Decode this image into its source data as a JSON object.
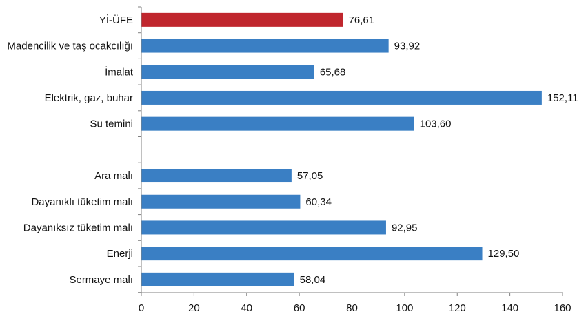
{
  "chart_data": {
    "type": "bar",
    "orientation": "horizontal",
    "categories": [
      "Yİ-ÜFE",
      "Madencilik ve taş ocakcılığı",
      "İmalat",
      "Elektrik, gaz, buhar",
      "Su temini",
      "",
      "Ara malı",
      "Dayanıklı tüketim malı",
      "Dayanıksız tüketim malı",
      "Enerji",
      "Sermaye malı"
    ],
    "values": [
      76.61,
      93.92,
      65.68,
      152.11,
      103.6,
      null,
      57.05,
      60.34,
      92.95,
      129.5,
      58.04
    ],
    "value_labels": [
      "76,61",
      "93,92",
      "65,68",
      "152,11",
      "103,60",
      "",
      "57,05",
      "60,34",
      "92,95",
      "129,50",
      "58,04"
    ],
    "bar_colors": [
      "#c0262d",
      "#3a7fc4",
      "#3a7fc4",
      "#3a7fc4",
      "#3a7fc4",
      "",
      "#3a7fc4",
      "#3a7fc4",
      "#3a7fc4",
      "#3a7fc4",
      "#3a7fc4"
    ],
    "title": "",
    "xlabel": "",
    "ylabel": "",
    "xlim": [
      0,
      160
    ],
    "x_ticks": [
      0,
      20,
      40,
      60,
      80,
      100,
      120,
      140,
      160
    ],
    "grid": false,
    "legend": "none"
  }
}
